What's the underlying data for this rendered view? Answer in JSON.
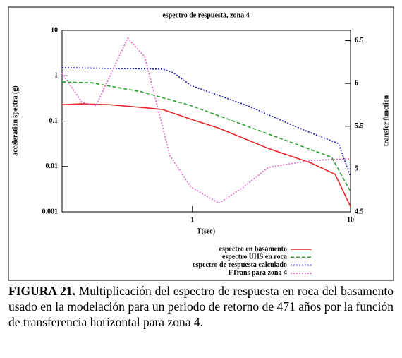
{
  "chart_data": {
    "type": "line",
    "title": "espectro de respuesta, zona 4",
    "x_label": "T(sec)",
    "y_label": "acceleration spectra (g)",
    "y2_label": "transfer function",
    "log_x": true,
    "log_y": true,
    "xlim": [
      0.15,
      10
    ],
    "xticks": [
      1,
      10
    ],
    "ylim": [
      0.001,
      10
    ],
    "yticks": [
      10,
      1,
      0.1,
      0.01,
      0.001
    ],
    "y2lim": [
      4.5,
      6.62
    ],
    "y2ticks": [
      4.5,
      5,
      5.5,
      6,
      6.5
    ],
    "series": [
      {
        "name": "espectro en basamento",
        "color": "#e8262a",
        "style": "solid",
        "x": [
          0.15,
          0.2,
          0.3,
          0.48,
          0.65,
          0.98,
          1.47,
          3.02,
          5.6,
          8,
          10
        ],
        "values": [
          0.23,
          0.24,
          0.23,
          0.2,
          0.18,
          0.11,
          0.07,
          0.025,
          0.012,
          0.0067,
          0.0013
        ]
      },
      {
        "name": "espectro UHS en roca",
        "color": "#2ca02c",
        "style": "dashed",
        "x": [
          0.15,
          0.23,
          0.48,
          0.98,
          3.02,
          7.6,
          10
        ],
        "values": [
          0.73,
          0.7,
          0.44,
          0.22,
          0.052,
          0.016,
          0.0028
        ]
      },
      {
        "name": "espectro de respuesta calculado",
        "color": "#2020b0",
        "style": "dotted",
        "x": [
          0.15,
          0.65,
          0.76,
          0.98,
          2.22,
          5.04,
          8.4,
          10
        ],
        "values": [
          1.5,
          1.4,
          1.16,
          0.61,
          0.22,
          0.064,
          0.032,
          0.006
        ]
      },
      {
        "name": "FTrans para zona 4",
        "color": "#e066c8",
        "style": "dotted",
        "axis": "y2",
        "x": [
          0.15,
          0.2,
          0.246,
          0.39,
          0.5,
          0.72,
          0.98,
          1.47,
          2.11,
          3.02,
          5.6,
          10
        ],
        "values": [
          6.12,
          5.78,
          5.74,
          6.53,
          6.31,
          5.16,
          4.79,
          4.6,
          4.79,
          5.02,
          5.1,
          5.12
        ]
      }
    ]
  },
  "caption": {
    "label": "FIGURA 21.",
    "text": "Multiplicación del espectro de respuesta en roca del basamento usado en la modelación para un periodo de retorno de 471 años por la función de transferencia horizontal para zona 4."
  }
}
